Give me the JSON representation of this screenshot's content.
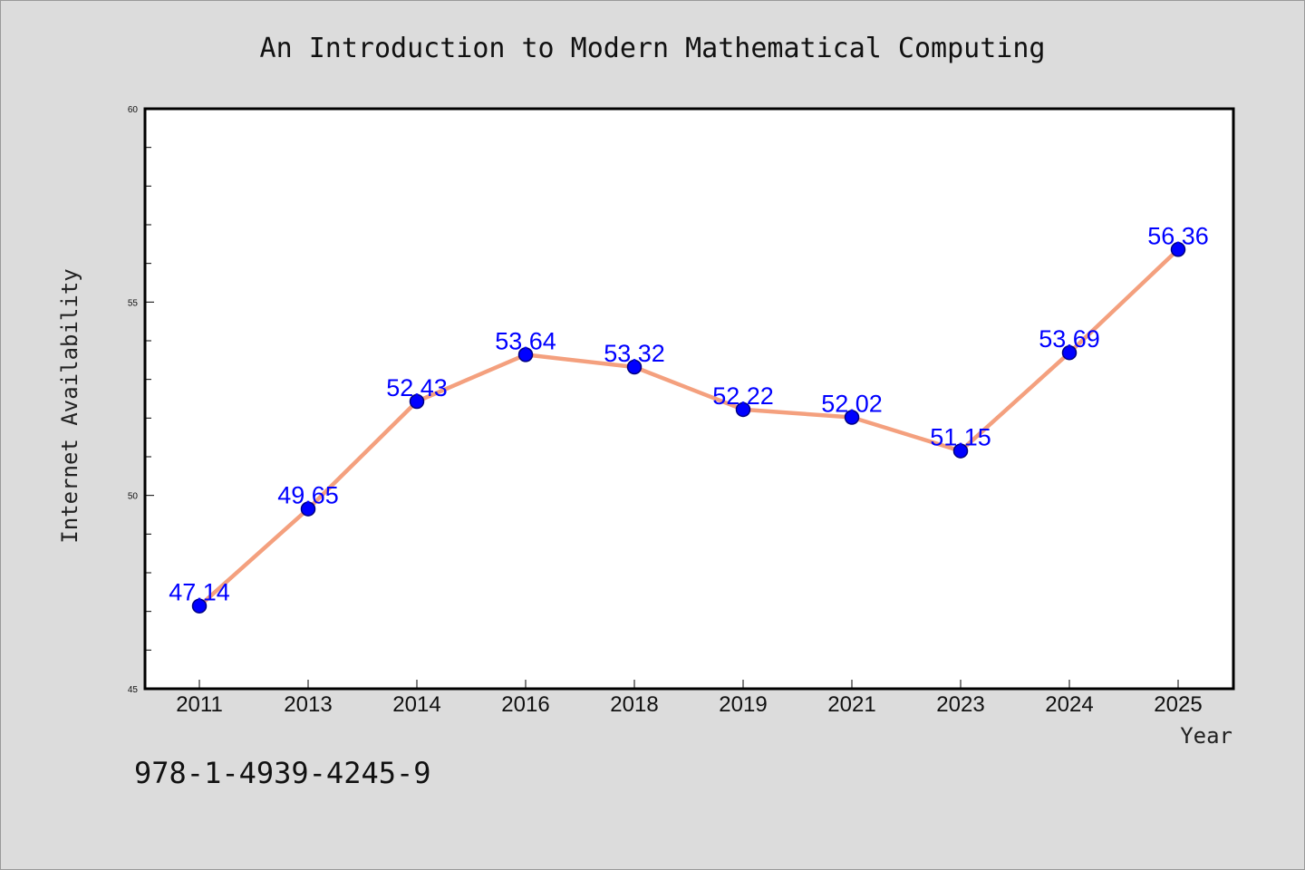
{
  "chart_data": {
    "type": "line",
    "title": "An Introduction to Modern Mathematical Computing",
    "xlabel": "Year",
    "ylabel": "Internet Availability",
    "categories": [
      "2011",
      "2013",
      "2014",
      "2016",
      "2018",
      "2019",
      "2021",
      "2023",
      "2024",
      "2025"
    ],
    "series": [
      {
        "values": [
          47.14,
          49.65,
          52.43,
          53.64,
          53.32,
          52.22,
          52.02,
          51.15,
          53.69,
          56.36
        ]
      }
    ],
    "data_labels": [
      "47.14",
      "49.65",
      "52.43",
      "53.64",
      "53.32",
      "52.22",
      "52.02",
      "51.15",
      "53.69",
      "56.36"
    ],
    "ylim": [
      45,
      60
    ],
    "yticks": [
      "45",
      "50",
      "55",
      "60"
    ],
    "grid": false,
    "colors": {
      "line": "#f4a07e",
      "marker": "#0000ff",
      "marker_edge": "#000080",
      "data_label": "#0000ff",
      "plot_background": "#ffffff",
      "page_background": "#dcdcdc"
    }
  },
  "footer": {
    "isbn": "978-1-4939-4245-9"
  }
}
